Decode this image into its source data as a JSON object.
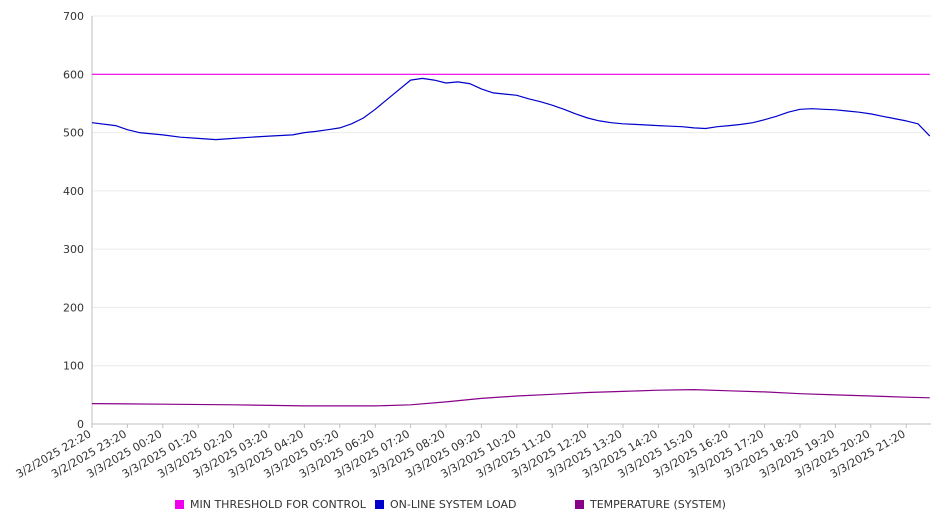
{
  "chart_data": {
    "type": "line",
    "ylim": [
      0,
      700
    ],
    "yticks": [
      0,
      100,
      200,
      300,
      400,
      500,
      600,
      700
    ],
    "grid": true,
    "legend_placement": "bottom",
    "x_tick_labels": [
      "3/2/2025 22:20",
      "3/2/2025 23:20",
      "3/3/2025 00:20",
      "3/3/2025 01:20",
      "3/3/2025 02:20",
      "3/3/2025 03:20",
      "3/3/2025 04:20",
      "3/3/2025 05:20",
      "3/3/2025 06:20",
      "3/3/2025 07:20",
      "3/3/2025 08:20",
      "3/3/2025 09:20",
      "3/3/2025 10:20",
      "3/3/2025 11:20",
      "3/3/2025 12:20",
      "3/3/2025 13:20",
      "3/3/2025 14:20",
      "3/3/2025 15:20",
      "3/3/2025 16:20",
      "3/3/2025 17:20",
      "3/3/2025 18:20",
      "3/3/2025 19:20",
      "3/3/2025 20:20",
      "3/3/2025 21:20"
    ],
    "series": [
      {
        "name": "MIN THRESHOLD FOR CONTROL",
        "color": "#ee00ee",
        "x": [
          "3/2/2025 22:20",
          "3/3/2025 22:00"
        ],
        "values": [
          600,
          600
        ]
      },
      {
        "name": "ON-LINE SYSTEM LOAD",
        "color": "#0000cc",
        "x": [
          "3/2/2025 22:20",
          "3/2/2025 23:00",
          "3/2/2025 23:20",
          "3/2/2025 23:40",
          "3/3/2025 00:20",
          "3/3/2025 00:50",
          "3/3/2025 01:20",
          "3/3/2025 01:50",
          "3/3/2025 02:20",
          "3/3/2025 02:50",
          "3/3/2025 03:20",
          "3/3/2025 04:00",
          "3/3/2025 04:20",
          "3/3/2025 04:40",
          "3/3/2025 05:00",
          "3/3/2025 05:20",
          "3/3/2025 05:40",
          "3/3/2025 06:00",
          "3/3/2025 06:20",
          "3/3/2025 06:50",
          "3/3/2025 07:20",
          "3/3/2025 07:40",
          "3/3/2025 08:00",
          "3/3/2025 08:20",
          "3/3/2025 08:40",
          "3/3/2025 09:00",
          "3/3/2025 09:20",
          "3/3/2025 09:40",
          "3/3/2025 10:00",
          "3/3/2025 10:20",
          "3/3/2025 10:40",
          "3/3/2025 11:00",
          "3/3/2025 11:20",
          "3/3/2025 11:40",
          "3/3/2025 12:00",
          "3/3/2025 12:20",
          "3/3/2025 12:40",
          "3/3/2025 13:00",
          "3/3/2025 13:20",
          "3/3/2025 13:40",
          "3/3/2025 14:00",
          "3/3/2025 14:20",
          "3/3/2025 14:40",
          "3/3/2025 15:00",
          "3/3/2025 15:20",
          "3/3/2025 15:40",
          "3/3/2025 16:00",
          "3/3/2025 16:20",
          "3/3/2025 16:40",
          "3/3/2025 17:00",
          "3/3/2025 17:20",
          "3/3/2025 17:40",
          "3/3/2025 18:00",
          "3/3/2025 18:20",
          "3/3/2025 18:40",
          "3/3/2025 19:00",
          "3/3/2025 19:20",
          "3/3/2025 19:40",
          "3/3/2025 20:00",
          "3/3/2025 20:20",
          "3/3/2025 20:40",
          "3/3/2025 21:00",
          "3/3/2025 21:20",
          "3/3/2025 21:40",
          "3/3/2025 22:00"
        ],
        "values": [
          517,
          512,
          505,
          500,
          496,
          492,
          490,
          488,
          490,
          492,
          494,
          496,
          500,
          502,
          505,
          508,
          515,
          525,
          540,
          565,
          590,
          593,
          590,
          585,
          587,
          584,
          575,
          568,
          566,
          564,
          558,
          553,
          547,
          540,
          532,
          525,
          520,
          517,
          515,
          514,
          513,
          512,
          511,
          510,
          508,
          507,
          510,
          512,
          514,
          517,
          522,
          528,
          535,
          540,
          541,
          540,
          539,
          537,
          535,
          532,
          528,
          524,
          520,
          515,
          494
        ]
      },
      {
        "name": "TEMPERATURE (SYSTEM)",
        "color": "#880088",
        "x": [
          "3/2/2025 22:20",
          "3/3/2025 00:20",
          "3/3/2025 02:20",
          "3/3/2025 04:20",
          "3/3/2025 06:20",
          "3/3/2025 07:20",
          "3/3/2025 08:20",
          "3/3/2025 09:20",
          "3/3/2025 10:20",
          "3/3/2025 11:20",
          "3/3/2025 12:20",
          "3/3/2025 13:20",
          "3/3/2025 14:20",
          "3/3/2025 15:20",
          "3/3/2025 16:20",
          "3/3/2025 17:20",
          "3/3/2025 18:20",
          "3/3/2025 19:20",
          "3/3/2025 20:20",
          "3/3/2025 21:20",
          "3/3/2025 22:00"
        ],
        "values": [
          35,
          34,
          33,
          31,
          31,
          33,
          38,
          44,
          48,
          51,
          54,
          56,
          58,
          59,
          57,
          55,
          52,
          50,
          48,
          46,
          45
        ]
      }
    ]
  }
}
